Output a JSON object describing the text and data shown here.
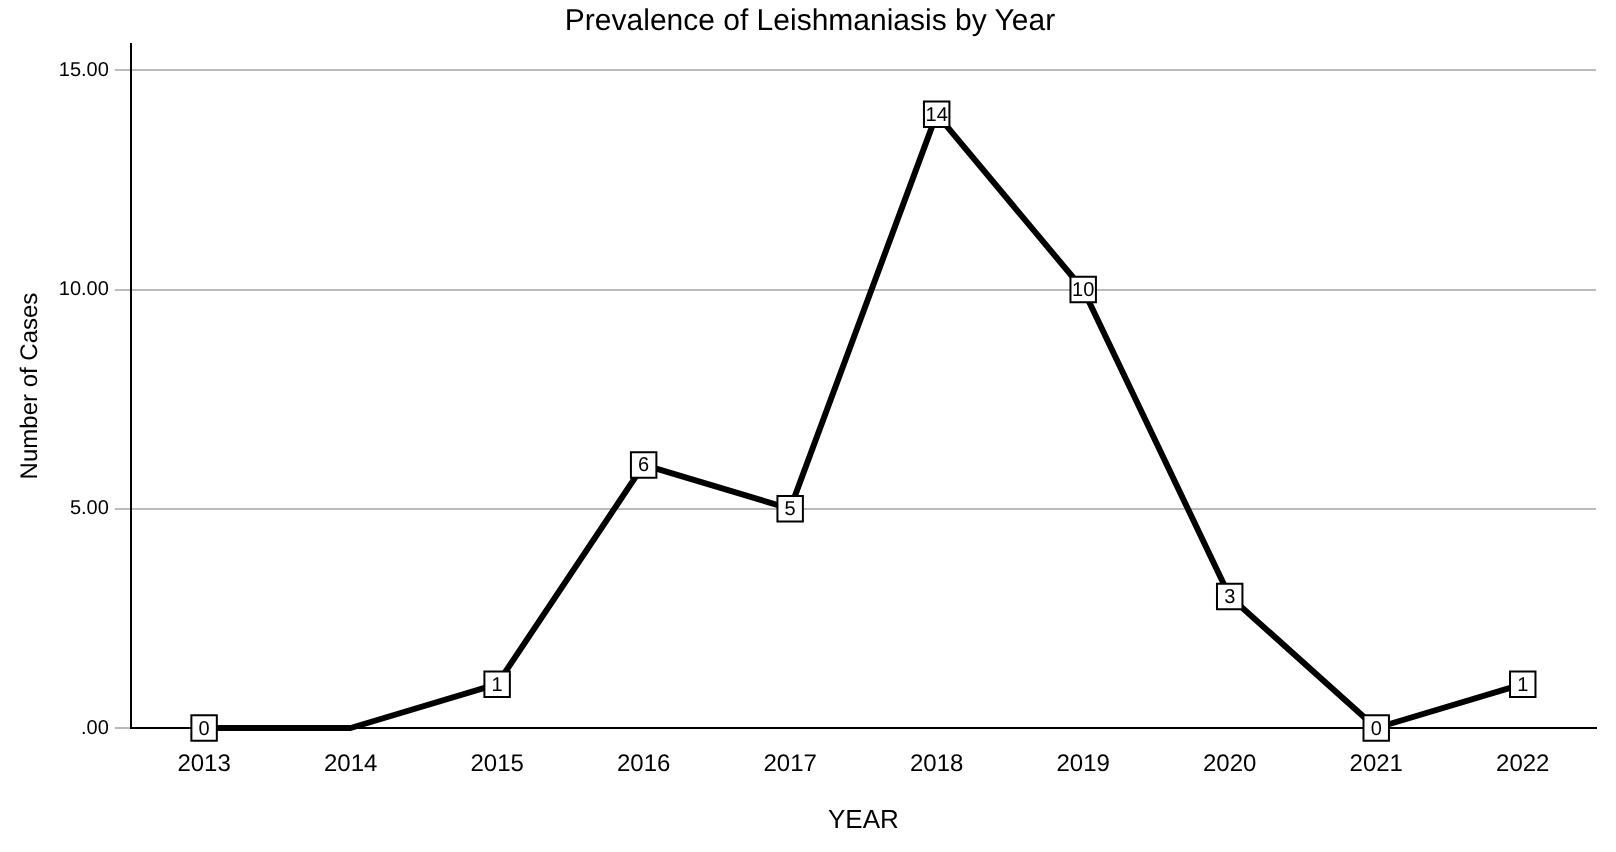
{
  "chart_data": {
    "type": "line",
    "title": "Prevalence of Leishmaniasis by Year",
    "xlabel": "YEAR",
    "ylabel": "Number of Cases",
    "categories": [
      "2013",
      "2014",
      "2015",
      "2016",
      "2017",
      "2018",
      "2019",
      "2020",
      "2021",
      "2022"
    ],
    "series": [
      {
        "color": "#000000",
        "values": [
          0,
          0,
          1,
          6,
          5,
          14,
          10,
          3,
          0,
          1
        ],
        "value_labels": [
          "0",
          null,
          "1",
          "6",
          "5",
          "14",
          "10",
          "3",
          "0",
          "1"
        ]
      }
    ],
    "ylim": [
      0,
      15.6
    ],
    "yticks": [
      {
        "value": 0,
        "label": ".00"
      },
      {
        "value": 5,
        "label": "5.00"
      },
      {
        "value": 10,
        "label": "10.00"
      },
      {
        "value": 15,
        "label": "15.00"
      }
    ],
    "grid": "y",
    "marker": "square",
    "line_style": "solid"
  }
}
